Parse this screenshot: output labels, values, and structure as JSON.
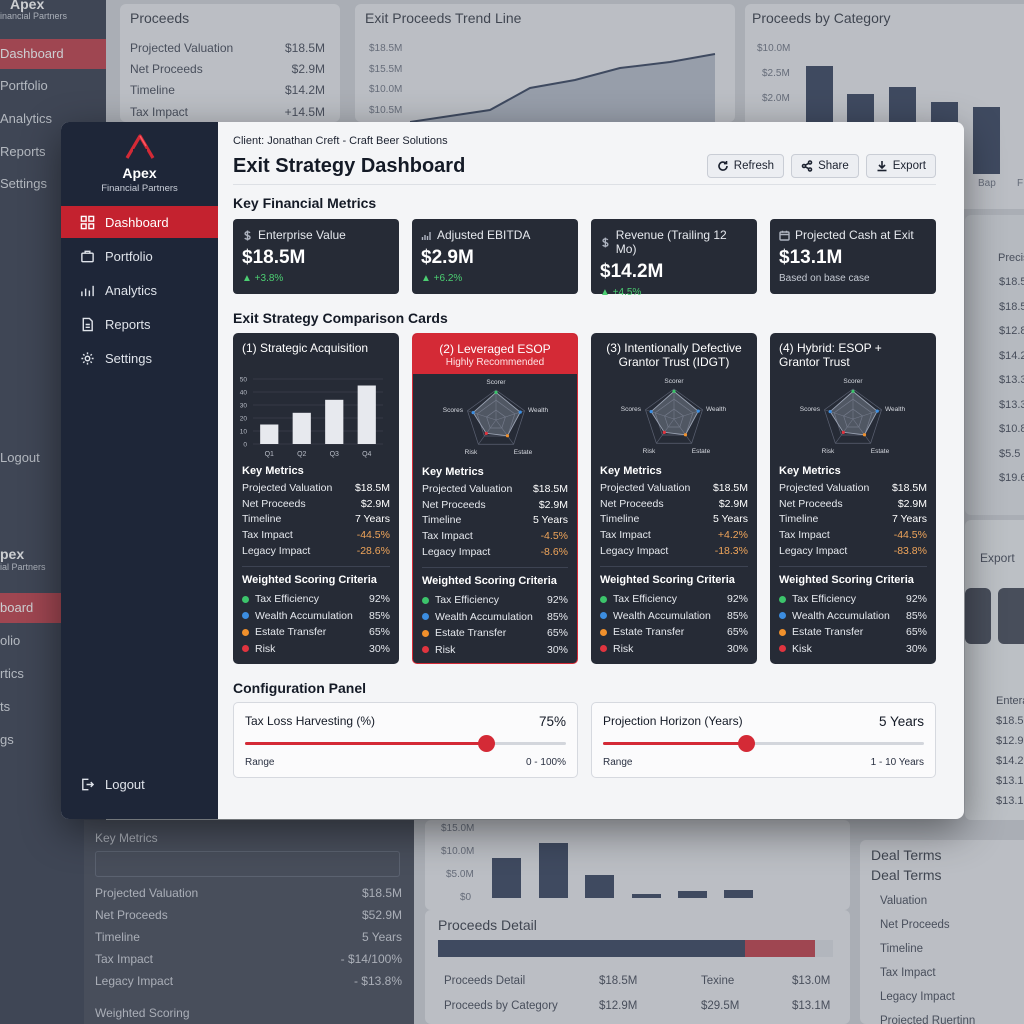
{
  "background": {
    "sidebar_top": {
      "logo": "Apex",
      "logo_sub": "inancial Partners",
      "items": [
        "Dashboard",
        "Portfolio",
        "Analytics",
        "Reports",
        "Settings"
      ],
      "logout": "Logout"
    },
    "sidebar_bottom": {
      "logo": "pex",
      "logo_sub": "ial Partners",
      "items": [
        "board",
        "olio",
        "rtics",
        "ts",
        "gs"
      ]
    },
    "proceeds_card": {
      "title": "Proceeds",
      "rows": [
        {
          "label": "Projected Valuation",
          "value": "$18.5M"
        },
        {
          "label": "Net Proceeds",
          "value": "$2.9M"
        },
        {
          "label": "Timeline",
          "value": "$14.2M"
        },
        {
          "label": "Tax Impact",
          "value": "+14.5M"
        }
      ]
    },
    "trend_card": {
      "title": "Exit Proceeds Trend Line",
      "ticks": [
        "$18.5M",
        "$15.5M",
        "$10.0M",
        "$10.5M"
      ]
    },
    "category_card": {
      "title": "Proceeds by Category",
      "ticks": [
        "$10.0M",
        "$2.5M",
        "$2.0M"
      ],
      "bar_values": [
        10.5,
        7.8,
        8.5,
        7.0,
        6.5
      ],
      "xlabels": [
        "Bap",
        "F"
      ]
    },
    "right_col": {
      "header": "Precis",
      "values": [
        "$18.5",
        "$18.5",
        "$12.8",
        "$14.2",
        "$13.3",
        "$13.3",
        "$10.8",
        "$5.5",
        "$19.6"
      ],
      "export": "Export",
      "header2": "Entera",
      "values2": [
        "$18.5N",
        "$12.9M",
        "$14.2N",
        "$13.1M",
        "$13.1M"
      ]
    },
    "key_metrics_panel": {
      "title": "Key Metrics",
      "rows": [
        {
          "label": "Projected Valuation",
          "value": "$18.5M"
        },
        {
          "label": "Net Proceeds",
          "value": "$52.9M"
        },
        {
          "label": "Timeline",
          "value": "5 Years"
        },
        {
          "label": "Tax Impact",
          "value": "- $14/100%"
        },
        {
          "label": "Legacy Impact",
          "value": "- $13.8%"
        }
      ],
      "footer": "Weighted Scoring"
    },
    "bottom_chart": {
      "ticks": [
        "$15.0M",
        "$10.0M",
        "$5.0M",
        "$0"
      ],
      "bar_values": [
        9.5,
        13.2,
        5.4,
        1.0,
        1.6,
        2.0
      ]
    },
    "proceeds_detail": {
      "title": "Proceeds Detail",
      "rows": [
        {
          "a": "Proceeds Detail",
          "b": "$18.5M",
          "c": "Texine",
          "d": "$13.0M"
        },
        {
          "a": "Proceeds by Category",
          "b": "$12.9M",
          "c": "$29.5M",
          "d": "$13.1M"
        }
      ]
    },
    "deal_terms": {
      "title1": "Deal Terms",
      "title2": "Deal Terms",
      "rows": [
        "Valuation",
        "Net Proceeds",
        "Timeline",
        "Tax Impact",
        "Legacy Impact",
        "Projected Ruertinn"
      ]
    }
  },
  "sidebar": {
    "brand_name": "Apex",
    "brand_sub": "Financial Partners",
    "items": [
      {
        "label": "Dashboard",
        "icon": "dashboard-grid-icon"
      },
      {
        "label": "Portfolio",
        "icon": "briefcase-icon"
      },
      {
        "label": "Analytics",
        "icon": "bar-chart-icon"
      },
      {
        "label": "Reports",
        "icon": "document-icon"
      },
      {
        "label": "Settings",
        "icon": "gear-icon"
      }
    ],
    "logout": "Logout",
    "accent": "#c4222f"
  },
  "header": {
    "client": "Client: Jonathan Creft - Craft Beer Solutions",
    "title": "Exit Strategy Dashboard",
    "buttons": {
      "refresh": "Refresh",
      "share": "Share",
      "export": "Export"
    }
  },
  "key_metrics": {
    "title": "Key Financial Metrics",
    "cards": [
      {
        "label": "Enterprise Value",
        "value": "$18.5M",
        "delta": "▲ +3.8%",
        "icon": "dollar-icon"
      },
      {
        "label": "Adjusted EBITDA",
        "value": "$2.9M",
        "delta": "▲ +6.2%",
        "icon": "bar-chart-icon"
      },
      {
        "label": "Revenue (Trailing 12 Mo)",
        "value": "$14.2M",
        "delta": "▲ +4.5%",
        "icon": "dollar-icon"
      },
      {
        "label": "Projected Cash at Exit",
        "value": "$13.1M",
        "note": "Based on base case",
        "icon": "calendar-icon"
      }
    ]
  },
  "comparison": {
    "title": "Exit Strategy Comparison Cards",
    "cards": [
      {
        "title": "(1) Strategic Acquisition",
        "chart": {
          "type": "bar",
          "categories": [
            "Q1",
            "Q2",
            "Q3",
            "Q4"
          ],
          "values": [
            15,
            24,
            34,
            45
          ],
          "yticks": [
            "50",
            "40",
            "30",
            "20",
            "10",
            "0"
          ],
          "ylim": [
            0,
            50
          ]
        },
        "metrics_title": "Key Metrics",
        "metrics": [
          {
            "label": "Projected Valuation",
            "value": "$18.5M"
          },
          {
            "label": "Net Proceeds",
            "value": "$2.9M"
          },
          {
            "label": "Timeline",
            "value": "7 Years"
          },
          {
            "label": "Tax Impact",
            "value": "-44.5%"
          },
          {
            "label": "Legacy Impact",
            "value": "-28.6%"
          }
        ],
        "scoring_title": "Weighted Scoring Criteria",
        "scoring": [
          {
            "label": "Tax Efficiency",
            "value": "92%",
            "color": "#3cc46b"
          },
          {
            "label": "Wealth Accumulation",
            "value": "85%",
            "color": "#3c8de0"
          },
          {
            "label": "Estate Transfer",
            "value": "65%",
            "color": "#f0902c"
          },
          {
            "label": "Risk",
            "value": "30%",
            "color": "#e0343f"
          }
        ]
      },
      {
        "title": "(2) Leveraged ESOP",
        "subtitle": "Highly Recommended",
        "chart": {
          "type": "radar",
          "labels": {
            "top": "Scorer",
            "left": "Scores",
            "right": "Wealth",
            "bl": "Risk",
            "br": "Estate"
          }
        },
        "metrics_title": "Key Metrics",
        "metrics": [
          {
            "label": "Projected Valuation",
            "value": "$18.5M"
          },
          {
            "label": "Net Proceeds",
            "value": "$2.9M"
          },
          {
            "label": "Timeline",
            "value": "5 Years"
          },
          {
            "label": "Tax Impact",
            "value": "-4.5%"
          },
          {
            "label": "Legacy Impact",
            "value": "-8.6%"
          }
        ],
        "scoring_title": "Weighted Scoring Criteria",
        "scoring": [
          {
            "label": "Tax Efficiency",
            "value": "92%",
            "color": "#3cc46b"
          },
          {
            "label": "Wealth Accumulation",
            "value": "85%",
            "color": "#3c8de0"
          },
          {
            "label": "Estate Transfer",
            "value": "65%",
            "color": "#f0902c"
          },
          {
            "label": "Risk",
            "value": "30%",
            "color": "#e0343f"
          }
        ]
      },
      {
        "title": "(3) Intentionally Defective Grantor Trust (IDGT)",
        "chart": {
          "type": "radar",
          "labels": {
            "top": "Scorer",
            "left": "Scores",
            "right": "Wealth",
            "bl": "Risk",
            "br": "Estate"
          }
        },
        "metrics_title": "Key Metrics",
        "metrics": [
          {
            "label": "Projected Valuation",
            "value": "$18.5M"
          },
          {
            "label": "Net Proceeds",
            "value": "$2.9M"
          },
          {
            "label": "Timeline",
            "value": "5 Years"
          },
          {
            "label": "Tax Impact",
            "value": "+4.2%"
          },
          {
            "label": "Legacy Impact",
            "value": "-18.3%"
          }
        ],
        "scoring_title": "Weighted Scoring Criteria",
        "scoring": [
          {
            "label": "Tax Efficiency",
            "value": "92%",
            "color": "#3cc46b"
          },
          {
            "label": "Wealth Accumulation",
            "value": "85%",
            "color": "#3c8de0"
          },
          {
            "label": "Estate Transfer",
            "value": "65%",
            "color": "#f0902c"
          },
          {
            "label": "Risk",
            "value": "30%",
            "color": "#e0343f"
          }
        ]
      },
      {
        "title": "(4) Hybrid: ESOP + Grantor Trust",
        "chart": {
          "type": "radar",
          "labels": {
            "top": "Scorer",
            "left": "Scores",
            "right": "Wealth",
            "bl": "Risk",
            "br": "Estate"
          }
        },
        "metrics_title": "Key Metrics",
        "metrics": [
          {
            "label": "Projected Valuation",
            "value": "$18.5M"
          },
          {
            "label": "Net Proceeds",
            "value": "$2.9M"
          },
          {
            "label": "Timeline",
            "value": "7 Years"
          },
          {
            "label": "Tax Impact",
            "value": "-44.5%"
          },
          {
            "label": "Legacy Impact",
            "value": "-83.8%"
          }
        ],
        "scoring_title": "Weighted Scoring Criteria",
        "scoring": [
          {
            "label": "Tax Efficiency",
            "value": "92%",
            "color": "#3cc46b"
          },
          {
            "label": "Wealth Accumulation",
            "value": "85%",
            "color": "#3c8de0"
          },
          {
            "label": "Estate Transfer",
            "value": "65%",
            "color": "#f0902c"
          },
          {
            "label": "Kisk",
            "value": "30%",
            "color": "#e0343f"
          }
        ]
      }
    ]
  },
  "config": {
    "title": "Configuration Panel",
    "sliders": [
      {
        "label": "Tax Loss Harvesting (%)",
        "value_text": "75%",
        "fraction": 0.75,
        "range_label": "Range",
        "range": "0 - 100%"
      },
      {
        "label": "Projection Horizon (Years)",
        "value_text": "5 Years",
        "fraction": 0.444,
        "range_label": "Range",
        "range": "1 - 10 Years"
      }
    ]
  }
}
